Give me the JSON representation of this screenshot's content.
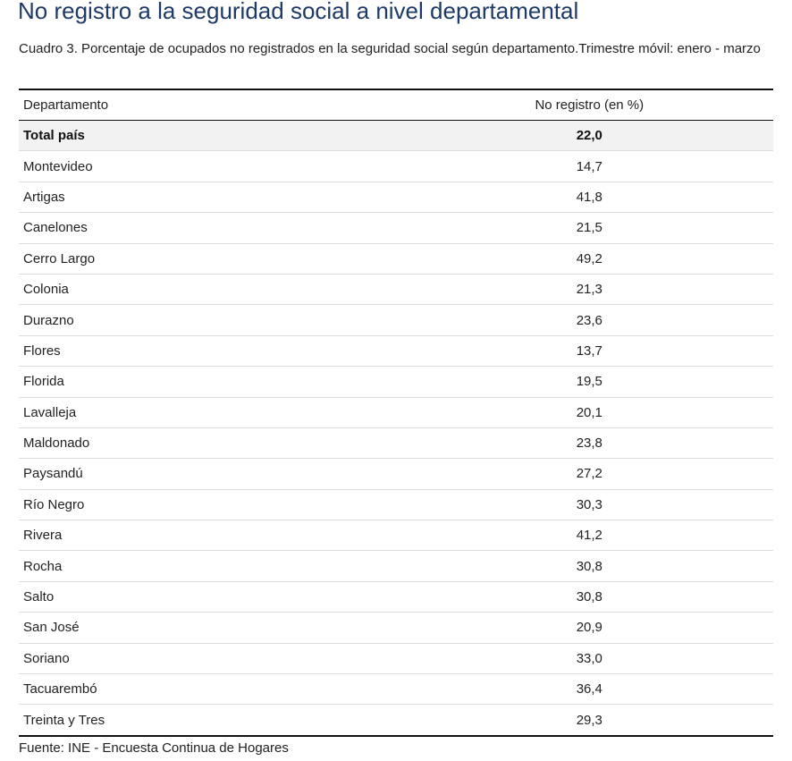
{
  "title": "No registro a la seguridad social a nivel departamental",
  "caption": "Cuadro 3. Porcentaje de ocupados no registrados en la seguridad social según departamento.Trimestre móvil: enero - marzo",
  "table": {
    "headers": {
      "departamento": "Departamento",
      "valor": "No registro (en %)"
    },
    "rows": [
      {
        "departamento": "Total país",
        "valor": "22,0",
        "total": true
      },
      {
        "departamento": "Montevideo",
        "valor": "14,7"
      },
      {
        "departamento": "Artigas",
        "valor": "41,8"
      },
      {
        "departamento": "Canelones",
        "valor": "21,5"
      },
      {
        "departamento": "Cerro Largo",
        "valor": "49,2"
      },
      {
        "departamento": "Colonia",
        "valor": "21,3"
      },
      {
        "departamento": "Durazno",
        "valor": "23,6"
      },
      {
        "departamento": "Flores",
        "valor": "13,7"
      },
      {
        "departamento": "Florida",
        "valor": "19,5"
      },
      {
        "departamento": "Lavalleja",
        "valor": "20,1"
      },
      {
        "departamento": "Maldonado",
        "valor": "23,8"
      },
      {
        "departamento": "Paysandú",
        "valor": "27,2"
      },
      {
        "departamento": "Río Negro",
        "valor": "30,3"
      },
      {
        "departamento": "Rivera",
        "valor": "41,2"
      },
      {
        "departamento": "Rocha",
        "valor": "30,8"
      },
      {
        "departamento": "Salto",
        "valor": "30,8"
      },
      {
        "departamento": "San José",
        "valor": "20,9"
      },
      {
        "departamento": "Soriano",
        "valor": "33,0"
      },
      {
        "departamento": "Tacuarembó",
        "valor": "36,4"
      },
      {
        "departamento": "Treinta y Tres",
        "valor": "29,3"
      }
    ]
  },
  "source": "Fuente: INE - Encuesta Continua de Hogares",
  "colors": {
    "title": "#1e3a66",
    "total_row_bg": "#f2f2f2"
  }
}
